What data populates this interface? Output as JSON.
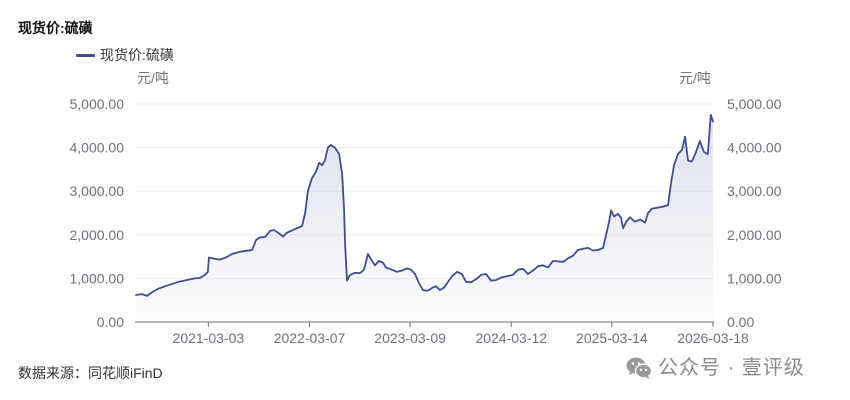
{
  "source": "数据来源：同花顺iFinD",
  "watermark": {
    "icon": "wechat-icon",
    "text": "公众号 · 壹评级",
    "color": "#8a8a8a"
  },
  "chart_data": {
    "type": "line",
    "title": "现货价:硫磺",
    "ylabel_left": "元/吨",
    "ylabel_right": "元/吨",
    "xlim": [
      "2020-06-12",
      "2026-03-18"
    ],
    "ylim": [
      0,
      5000
    ],
    "x_ticks": [
      "2021-03-03",
      "2022-03-07",
      "2023-03-09",
      "2024-03-12",
      "2025-03-14",
      "2026-03-18"
    ],
    "y_ticks": [
      0,
      1000,
      2000,
      3000,
      4000,
      5000
    ],
    "y_tick_labels": [
      "0.00",
      "1,000.00",
      "2,000.00",
      "3,000.00",
      "4,000.00",
      "5,000.00"
    ],
    "grid": true,
    "legend_position": "top-left",
    "series": [
      {
        "name": "现货价:硫磺",
        "color": "#3f4d8e",
        "x": [
          "2020-06-12",
          "2020-07-04",
          "2020-07-22",
          "2020-08-09",
          "2020-08-31",
          "2020-09-26",
          "2020-10-21",
          "2020-11-20",
          "2020-12-19",
          "2021-01-13",
          "2021-01-31",
          "2021-02-19",
          "2021-03-01",
          "2021-03-05",
          "2021-03-20",
          "2021-04-14",
          "2021-05-06",
          "2021-05-28",
          "2021-06-19",
          "2021-07-15",
          "2021-08-09",
          "2021-08-24",
          "2021-09-07",
          "2021-09-26",
          "2021-10-14",
          "2021-10-28",
          "2021-11-12",
          "2021-11-30",
          "2021-12-15",
          "2022-01-02",
          "2022-01-20",
          "2022-02-08",
          "2022-02-19",
          "2022-03-01",
          "2022-03-16",
          "2022-03-31",
          "2022-04-11",
          "2022-04-22",
          "2022-05-02",
          "2022-05-13",
          "2022-05-24",
          "2022-06-08",
          "2022-06-23",
          "2022-07-04",
          "2022-07-11",
          "2022-07-15",
          "2022-07-22",
          "2022-08-02",
          "2022-08-20",
          "2022-09-07",
          "2022-09-22",
          "2022-10-06",
          "2022-10-21",
          "2022-11-01",
          "2022-11-15",
          "2022-11-30",
          "2022-12-11",
          "2023-01-02",
          "2023-01-20",
          "2023-02-07",
          "2023-02-26",
          "2023-03-12",
          "2023-03-27",
          "2023-04-10",
          "2023-04-25",
          "2023-05-13",
          "2023-05-28",
          "2023-06-11",
          "2023-06-26",
          "2023-07-11",
          "2023-07-25",
          "2023-08-09",
          "2023-08-27",
          "2023-09-14",
          "2023-09-29",
          "2023-10-17",
          "2023-11-04",
          "2023-11-23",
          "2023-12-11",
          "2023-12-29",
          "2024-01-16",
          "2024-02-04",
          "2024-02-25",
          "2024-03-18",
          "2024-04-06",
          "2024-04-24",
          "2024-05-12",
          "2024-05-30",
          "2024-06-18",
          "2024-07-06",
          "2024-07-24",
          "2024-08-11",
          "2024-08-29",
          "2024-09-17",
          "2024-10-05",
          "2024-10-23",
          "2024-11-10",
          "2024-11-29",
          "2024-12-17",
          "2025-01-04",
          "2025-01-22",
          "2025-02-10",
          "2025-02-21",
          "2025-03-04",
          "2025-03-11",
          "2025-03-22",
          "2025-04-05",
          "2025-04-16",
          "2025-04-24",
          "2025-05-05",
          "2025-05-19",
          "2025-06-06",
          "2025-06-25",
          "2025-07-13",
          "2025-07-24",
          "2025-08-07",
          "2025-08-26",
          "2025-09-13",
          "2025-10-05",
          "2025-10-16",
          "2025-10-27",
          "2025-11-10",
          "2025-11-25",
          "2025-12-06",
          "2025-12-17",
          "2025-12-31",
          "2026-01-15",
          "2026-01-29",
          "2026-02-13",
          "2026-02-27",
          "2026-03-10",
          "2026-03-18"
        ],
        "y": [
          620,
          640,
          600,
          680,
          760,
          820,
          870,
          930,
          970,
          1000,
          1010,
          1080,
          1150,
          1480,
          1460,
          1430,
          1480,
          1560,
          1600,
          1630,
          1650,
          1880,
          1940,
          1950,
          2090,
          2110,
          2050,
          1960,
          2050,
          2100,
          2150,
          2200,
          2500,
          3000,
          3300,
          3450,
          3650,
          3600,
          3700,
          4000,
          4060,
          4000,
          3850,
          3400,
          2600,
          1750,
          950,
          1080,
          1130,
          1120,
          1200,
          1560,
          1400,
          1300,
          1400,
          1360,
          1250,
          1200,
          1150,
          1180,
          1230,
          1200,
          1100,
          900,
          730,
          720,
          780,
          820,
          730,
          790,
          920,
          1050,
          1150,
          1100,
          920,
          910,
          980,
          1080,
          1100,
          950,
          960,
          1020,
          1050,
          1080,
          1200,
          1220,
          1100,
          1180,
          1280,
          1300,
          1250,
          1400,
          1390,
          1380,
          1460,
          1520,
          1650,
          1680,
          1700,
          1640,
          1650,
          1700,
          2000,
          2300,
          2560,
          2420,
          2480,
          2400,
          2150,
          2300,
          2400,
          2300,
          2350,
          2280,
          2500,
          2600,
          2620,
          2640,
          2680,
          3200,
          3600,
          3850,
          3950,
          4250,
          3700,
          3680,
          3900,
          4150,
          3900,
          3850,
          4750,
          4600
        ]
      }
    ]
  }
}
